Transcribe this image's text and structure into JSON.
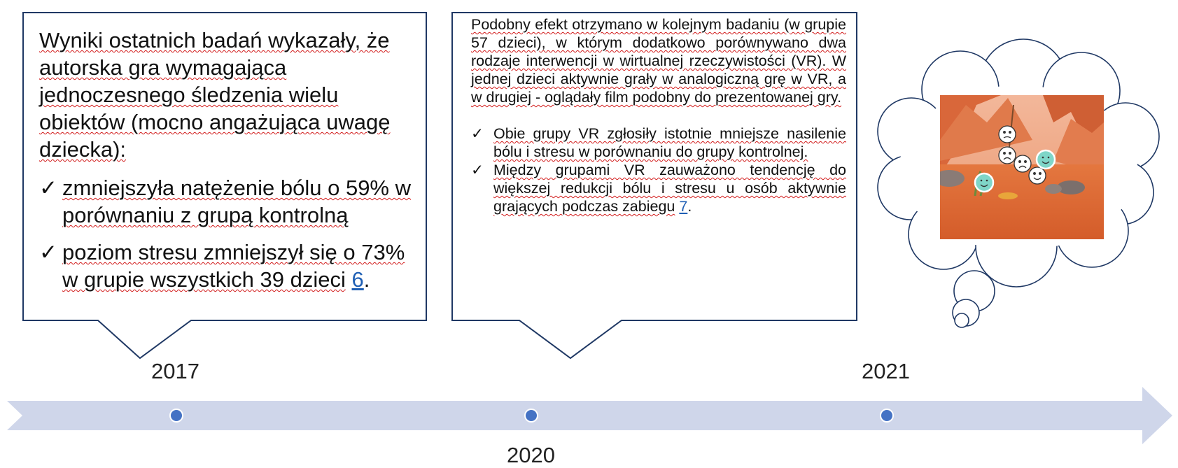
{
  "callouts": {
    "left": {
      "intro": "Wyniki ostatnich badań wykazały, że autorska gra wymagająca jednoczesnego śledzenia wielu obiektów (mocno angażująca uwagę dziecka):",
      "bullets": [
        {
          "text": "zmniejszyła natężenie bólu o 59% w porównaniu z grupą kontrolną"
        },
        {
          "text": "poziom stresu zmniejszył się o 73% w grupie wszystkich 39 dzieci",
          "ref": "6",
          "suffix": "."
        }
      ]
    },
    "middle": {
      "intro": "Podobny efekt otrzymano w kolejnym badaniu (w grupie 57 dzieci), w którym dodatkowo porównywano dwa rodzaje interwencji w wirtualnej rzeczywistości (VR). W jednej dzieci aktywnie grały w analogiczną grę w VR, a w drugiej - oglądały film podobny do prezentowanej gry.",
      "bullets": [
        {
          "text": "Obie grupy VR zgłosiły istotnie mniejsze nasilenie bólu i stresu w porównaniu do grupy kontrolnej."
        },
        {
          "text": "Między grupami VR zauważono tendencję do większej redukcji bólu i stresu u osób aktywnie grających podczas zabiegu",
          "ref": "7",
          "suffix": "."
        }
      ]
    }
  },
  "check_glyph": "✓",
  "timeline": {
    "years": [
      "2017",
      "2020",
      "2021"
    ]
  },
  "icons": {
    "thought": "thought-bubble",
    "scene": "vr-game-desert-scene",
    "faces": [
      "neutral-face",
      "sad-face",
      "sad-face",
      "smiling-face",
      "smiling-face",
      "smiling-face"
    ]
  },
  "colors": {
    "box_border": "#1f3864",
    "timeline_arrow": "#cfd6ea",
    "timeline_dot": "#4472c4",
    "link": "#1f5fb4",
    "spell_underline": "#d21c1c",
    "desert": "#d96a3a"
  }
}
